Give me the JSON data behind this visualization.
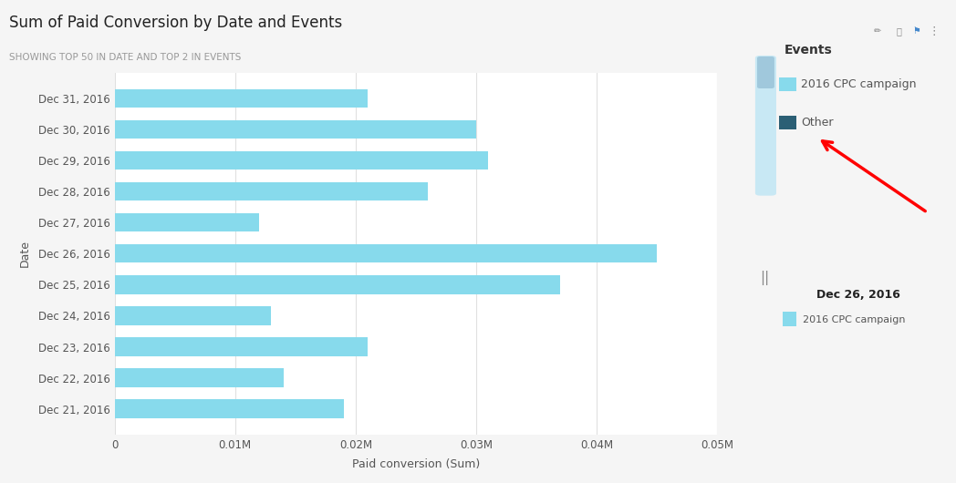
{
  "title": "Sum of Paid Conversion by Date and Events",
  "subtitle": "SHOWING TOP 50 IN DATE AND TOP 2 IN EVENTS",
  "xlabel": "Paid conversion (Sum)",
  "ylabel": "Date",
  "dates": [
    "Dec 31, 2016",
    "Dec 30, 2016",
    "Dec 29, 2016",
    "Dec 28, 2016",
    "Dec 27, 2016",
    "Dec 26, 2016",
    "Dec 25, 2016",
    "Dec 24, 2016",
    "Dec 23, 2016",
    "Dec 22, 2016",
    "Dec 21, 2016"
  ],
  "values": [
    21000,
    30000,
    31000,
    26000,
    12000,
    45000,
    37000,
    13000,
    21000,
    14000,
    19000
  ],
  "bar_color": "#87DAEC",
  "background_color": "#f5f5f5",
  "plot_bg_color": "#ffffff",
  "xlim": [
    0,
    50000
  ],
  "xtick_values": [
    0,
    10000,
    20000,
    30000,
    40000,
    50000
  ],
  "xtick_labels": [
    "0",
    "0.01M",
    "0.02M",
    "0.03M",
    "0.04M",
    "0.05M"
  ],
  "legend_items": [
    {
      "label": "2016 CPC campaign",
      "color": "#87DAEC"
    },
    {
      "label": "Other",
      "color": "#2B5F75"
    }
  ],
  "legend_title": "Events",
  "grid_color": "#e0e0e0",
  "title_fontsize": 12,
  "subtitle_fontsize": 7.5,
  "axis_label_fontsize": 9,
  "tick_fontsize": 8.5,
  "legend_fontsize": 9,
  "legend_title_fontsize": 10
}
